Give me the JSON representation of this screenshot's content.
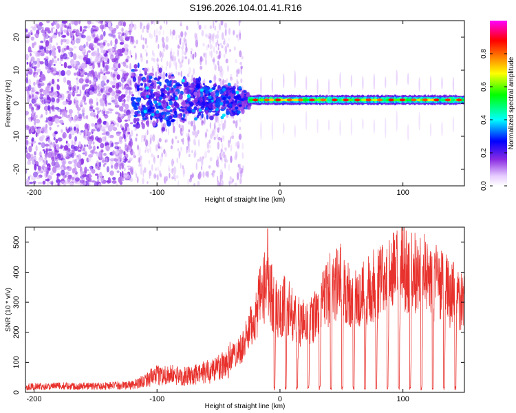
{
  "title": "S196.2026.104.01.41.R16",
  "chart_data": [
    {
      "type": "heatmap",
      "title": "S196.2026.104.01.41.R16",
      "xlabel": "Height of straight line (km)",
      "ylabel": "Frequency (Hz)",
      "xlim": [
        -207,
        150
      ],
      "ylim": [
        -25,
        25
      ],
      "xticks": [
        -200,
        -100,
        0,
        100
      ],
      "yticks": [
        -20,
        -10,
        0,
        10,
        20
      ],
      "colorbar": {
        "label": "Normalized spectral amplitude",
        "range": [
          0,
          1
        ],
        "ticks": [
          0.0,
          0.2,
          0.4,
          0.6,
          0.8
        ],
        "tick_labels": [
          "0.0",
          "0.2",
          "0.4",
          "0.6",
          "0.8"
        ],
        "colormap": [
          "#ffffff",
          "#e6ccff",
          "#8a2be2",
          "#0000ff",
          "#00ffff",
          "#00ff00",
          "#ffff00",
          "#ff8000",
          "#ff0000",
          "#ff00ff"
        ]
      },
      "features": {
        "noise_region_x": [
          -207,
          -120
        ],
        "scattered_region_x": [
          -120,
          -30
        ],
        "narrow_band_x": [
          -25,
          150
        ],
        "narrow_band_freq_hz": 1,
        "band_peak_amplitude": 0.9
      }
    },
    {
      "type": "line",
      "xlabel": "Height of straight line (km)",
      "ylabel": "SNR (10 * v/v)",
      "xlim": [
        -207,
        150
      ],
      "ylim": [
        0,
        550
      ],
      "xticks": [
        -200,
        -100,
        0,
        100
      ],
      "yticks": [
        0,
        100,
        200,
        300,
        400,
        500
      ],
      "series": [
        {
          "name": "SNR",
          "color": "#e8322d",
          "envelope": {
            "x": [
              -207,
              -180,
              -150,
              -120,
              -110,
              -100,
              -90,
              -80,
              -70,
              -60,
              -50,
              -40,
              -30,
              -25,
              -20,
              -15,
              -10,
              -5,
              0,
              5,
              10,
              20,
              30,
              40,
              50,
              60,
              70,
              80,
              90,
              100,
              110,
              120,
              130,
              140,
              150
            ],
            "y": [
              25,
              28,
              28,
              32,
              55,
              75,
              80,
              70,
              75,
              90,
              110,
              150,
              200,
              260,
              330,
              420,
              480,
              380,
              340,
              390,
              330,
              290,
              330,
              440,
              480,
              380,
              440,
              470,
              510,
              530,
              510,
              500,
              460,
              420,
              370
            ]
          },
          "dropout_start_x": -5,
          "dropout_period_x": 9.2,
          "dropout_floor": 8,
          "peak_spike": {
            "x": -10,
            "y": 545
          }
        }
      ]
    }
  ]
}
